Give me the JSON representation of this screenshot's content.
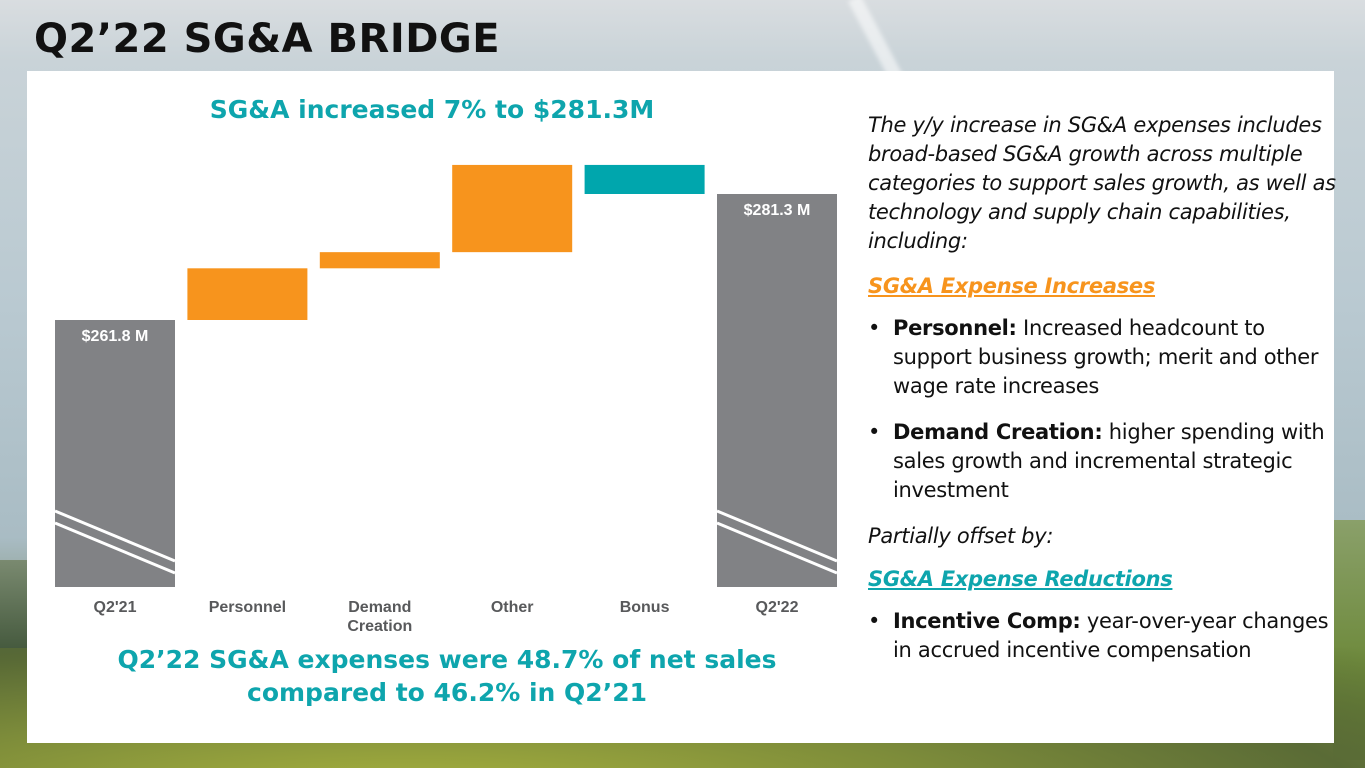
{
  "page": {
    "title": "Q2’22 SG&A BRIDGE"
  },
  "colors": {
    "total_bar": "#818285",
    "increase_bar": "#f7941d",
    "decrease_bar": "#00a6ad",
    "accent_teal": "#0ea5ad",
    "accent_orange": "#f7941d"
  },
  "chart_data": {
    "type": "bar",
    "subtype": "waterfall",
    "title": "SG&A increased 7% to $281.3M",
    "xlabel": "",
    "ylabel": "",
    "units": "$M",
    "axis_break": true,
    "categories": [
      "Q2'21",
      "Personnel",
      "Demand Creation",
      "Other",
      "Bonus",
      "Q2'22"
    ],
    "category_labels": [
      [
        "Q2'21"
      ],
      [
        "Personnel"
      ],
      [
        "Demand",
        "Creation"
      ],
      [
        "Other"
      ],
      [
        "Bonus"
      ],
      [
        "Q2'22"
      ]
    ],
    "kinds": [
      "total",
      "increase",
      "increase",
      "increase",
      "decrease",
      "total"
    ],
    "values": [
      261.8,
      8.0,
      2.5,
      13.5,
      -4.5,
      281.3
    ],
    "data_labels": [
      "$261.8 M",
      "",
      "",
      "",
      "",
      "$281.3 M"
    ],
    "ylim": [
      220,
      290
    ]
  },
  "footnote": {
    "line1": "Q2’22 SG&A expenses were 48.7% of net sales",
    "line2": "compared to 46.2% in Q2’21"
  },
  "commentary": {
    "intro": "The y/y increase in SG&A expenses includes broad-based SG&A growth across multiple categories  to support sales growth, as well as technology and supply chain capabilities, including:",
    "increases_heading": "SG&A Expense Increases",
    "increases": [
      {
        "label": "Personnel:",
        "text": " Increased headcount to support business growth; merit and other wage rate increases"
      },
      {
        "label": "Demand Creation:",
        "text": " higher spending with sales growth and incremental strategic investment"
      }
    ],
    "offset_text": "Partially offset by:",
    "reductions_heading": "SG&A Expense Reductions",
    "reductions": [
      {
        "label": "Incentive Comp:",
        "text": " year-over-year changes in accrued incentive compensation"
      }
    ],
    "bullet_char": "•"
  }
}
